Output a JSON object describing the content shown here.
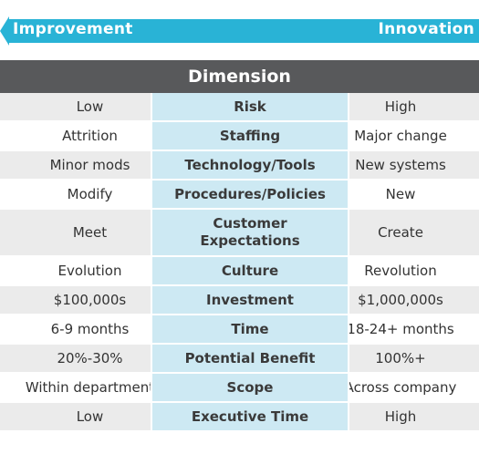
{
  "arrow": {
    "left_label": "Improvement",
    "right_label": "Innovation",
    "color": "#29b3d6"
  },
  "header": {
    "title": "Dimension"
  },
  "rows": [
    {
      "left": "Low",
      "dimension": "Risk",
      "right": "High"
    },
    {
      "left": "Attrition",
      "dimension": "Staffing",
      "right": "Major change"
    },
    {
      "left": "Minor mods",
      "dimension": "Technology/Tools",
      "right": "New systems"
    },
    {
      "left": "Modify",
      "dimension": "Procedures/Policies",
      "right": "New"
    },
    {
      "left": "Meet",
      "dimension": "Customer Expectations",
      "right": "Create"
    },
    {
      "left": "Evolution",
      "dimension": "Culture",
      "right": "Revolution"
    },
    {
      "left": "$100,000s",
      "dimension": "Investment",
      "right": "$1,000,000s"
    },
    {
      "left": "6-9 months",
      "dimension": "Time",
      "right": "18-24+ months"
    },
    {
      "left": "20%-30%",
      "dimension": "Potential Benefit",
      "right": "100%+"
    },
    {
      "left": "Within department",
      "dimension": "Scope",
      "right": "Across company"
    },
    {
      "left": "Low",
      "dimension": "Executive Time",
      "right": "High"
    }
  ]
}
